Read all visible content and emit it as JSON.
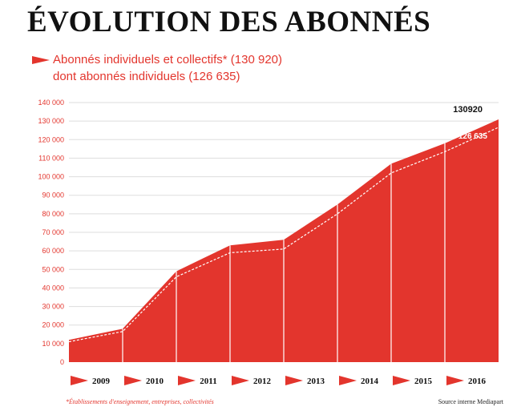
{
  "title": "ÉVOLUTION DES ABONNÉS",
  "legend": {
    "line1": "Abonnés individuels et collectifs* (130 920)",
    "line2": "dont abonnés individuels (126 635)"
  },
  "colors": {
    "accent": "#e3352d",
    "grid": "#dddddd",
    "text": "#111111",
    "dashed_line": "#ffffff"
  },
  "footnote": "*Établissements d'enseignement, entreprises, collectivités",
  "source": "Source interne Mediapart",
  "chart_data": {
    "type": "area",
    "categories": [
      "2009",
      "2010",
      "2011",
      "2012",
      "2013",
      "2014",
      "2015",
      "2016"
    ],
    "x": [
      2008.0,
      2009.0,
      2010.0,
      2011.0,
      2012.0,
      2013.0,
      2014.0,
      2015.0,
      2016.0
    ],
    "series": [
      {
        "name": "Abonnés individuels et collectifs*",
        "values": [
          12000,
          18000,
          49000,
          63000,
          66000,
          85000,
          107000,
          118000,
          130920
        ]
      },
      {
        "name": "dont abonnés individuels",
        "values": [
          11000,
          16500,
          46000,
          59000,
          61000,
          80000,
          102000,
          113500,
          126635
        ]
      }
    ],
    "ylim": [
      0,
      140000
    ],
    "yticks": [
      0,
      10000,
      20000,
      30000,
      40000,
      50000,
      60000,
      70000,
      80000,
      90000,
      100000,
      110000,
      120000,
      130000,
      140000
    ],
    "ytick_labels": [
      "0",
      "10 000",
      "20 000",
      "30 000",
      "40 000",
      "50 000",
      "60 000",
      "70 000",
      "80 000",
      "90 000",
      "100 000",
      "110 000",
      "120 000",
      "130 000",
      "140 000"
    ],
    "annotations": [
      {
        "label": "130920",
        "value": 130920,
        "series": 0
      },
      {
        "label": "126 635",
        "value": 126635,
        "series": 1
      }
    ],
    "grid": true,
    "xlabel": "",
    "ylabel": ""
  }
}
